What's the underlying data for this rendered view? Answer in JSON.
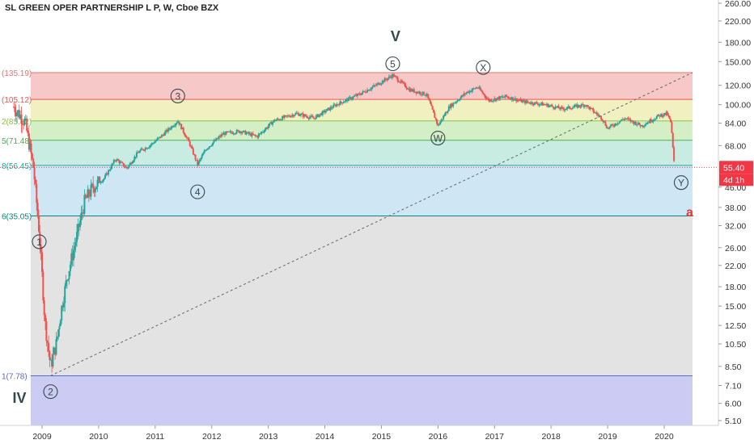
{
  "header": {
    "title": "SL GREEN OPER PARTNERSHIP L P, W, Cboe BZX"
  },
  "chart_data": {
    "type": "candlestick",
    "symbol_line": "SL GREEN OPER PARTNERSHIP L P, W, Cboe BZX",
    "scale": "log",
    "y_ticks": [
      "260.00",
      "220.00",
      "180.00",
      "150.00",
      "120.00",
      "100.00",
      "84.00",
      "68.00",
      "55.40",
      "46.00",
      "38.00",
      "32.00",
      "26.00",
      "22.00",
      "18.00",
      "15.00",
      "12.50",
      "10.50",
      "8.50",
      "7.10",
      "6.00",
      "5.10"
    ],
    "y_tick_values": [
      260,
      220,
      180,
      150,
      120,
      100,
      84,
      68,
      55.4,
      46,
      38,
      32,
      26,
      22,
      18,
      15,
      12.5,
      10.5,
      8.5,
      7.1,
      6.0,
      5.1
    ],
    "x_ticks": [
      "2009",
      "2010",
      "2011",
      "2012",
      "2013",
      "2014",
      "2015",
      "2016",
      "2017",
      "2018",
      "2019",
      "2020"
    ],
    "x_tick_values": [
      2009,
      2010,
      2011,
      2012,
      2013,
      2014,
      2015,
      2016,
      2017,
      2018,
      2019,
      2020
    ],
    "last_price": {
      "value": 55.4,
      "label": "55.40",
      "countdown": "4d 1h",
      "color": "#f23645"
    },
    "fib_levels": [
      {
        "label": "(135.19)",
        "value": 135.19,
        "color": "#e57373"
      },
      {
        "label": "(105.12)",
        "value": 105.12,
        "color": "#ef5350"
      },
      {
        "label": "2(85.82)",
        "value": 85.82,
        "color": "#8bc34a"
      },
      {
        "label": "5(71.48)",
        "value": 71.48,
        "color": "#4caf50"
      },
      {
        "label": "8(56.45)",
        "value": 56.45,
        "color": "#26a69a"
      },
      {
        "label": "6(35.05)",
        "value": 35.05,
        "color": "#00897b"
      },
      {
        "label": "1(7.78)",
        "value": 7.78,
        "color": "#5c6bc0"
      }
    ],
    "fib_zones": [
      {
        "top": 135.19,
        "bottom": 105.12,
        "color": "#f6c8c8"
      },
      {
        "top": 105.12,
        "bottom": 85.82,
        "color": "#f0f0c0"
      },
      {
        "top": 85.82,
        "bottom": 71.48,
        "color": "#d4efc6"
      },
      {
        "top": 71.48,
        "bottom": 56.45,
        "color": "#c8ece2"
      },
      {
        "top": 56.45,
        "bottom": 35.05,
        "color": "#cfe6f5"
      },
      {
        "top": 35.05,
        "bottom": 7.78,
        "color": "#e3e3e3"
      },
      {
        "top": 7.78,
        "bottom": 4.6,
        "color": "#cbcbf3"
      }
    ],
    "fib_x_range": [
      2008.8,
      2020.5
    ],
    "trendline": {
      "from": {
        "x": 2009.15,
        "y": 7.78
      },
      "to": {
        "x": 2020.5,
        "y": 135.19
      }
    },
    "wave_labels": [
      {
        "text": "1",
        "x": 2008.95,
        "y": 27.5,
        "circled": true
      },
      {
        "text": "2",
        "x": 2009.15,
        "y": 6.7,
        "circled": true
      },
      {
        "text": "3",
        "x": 2011.4,
        "y": 108.5,
        "circled": true
      },
      {
        "text": "4",
        "x": 2011.75,
        "y": 44.0,
        "circled": true
      },
      {
        "text": "5",
        "x": 2015.2,
        "y": 147.0,
        "circled": true
      },
      {
        "text": "W",
        "x": 2016.0,
        "y": 73.0,
        "circled": true
      },
      {
        "text": "X",
        "x": 2016.8,
        "y": 142.0,
        "circled": true
      },
      {
        "text": "Y",
        "x": 2020.3,
        "y": 48.0,
        "circled": true
      },
      {
        "text": "IV",
        "x": 2008.6,
        "y": 6.3,
        "circled": false
      },
      {
        "text": "V",
        "x": 2015.25,
        "y": 190.0,
        "circled": false
      },
      {
        "text": "a",
        "x": 2020.45,
        "y": 36.5,
        "circled": false,
        "color": "#e53935"
      }
    ],
    "price_path": [
      {
        "x": 2008.5,
        "close": 98
      },
      {
        "x": 2008.7,
        "close": 85
      },
      {
        "x": 2008.85,
        "close": 55
      },
      {
        "x": 2008.95,
        "close": 30
      },
      {
        "x": 2009.0,
        "close": 20
      },
      {
        "x": 2009.05,
        "close": 13
      },
      {
        "x": 2009.15,
        "close": 8.5
      },
      {
        "x": 2009.25,
        "close": 10.5
      },
      {
        "x": 2009.35,
        "close": 15
      },
      {
        "x": 2009.45,
        "close": 20
      },
      {
        "x": 2009.6,
        "close": 28
      },
      {
        "x": 2009.75,
        "close": 40
      },
      {
        "x": 2009.9,
        "close": 46
      },
      {
        "x": 2010.1,
        "close": 50
      },
      {
        "x": 2010.3,
        "close": 60
      },
      {
        "x": 2010.5,
        "close": 55
      },
      {
        "x": 2010.7,
        "close": 64
      },
      {
        "x": 2010.9,
        "close": 68
      },
      {
        "x": 2011.1,
        "close": 74
      },
      {
        "x": 2011.4,
        "close": 86
      },
      {
        "x": 2011.6,
        "close": 70
      },
      {
        "x": 2011.75,
        "close": 57
      },
      {
        "x": 2011.9,
        "close": 66
      },
      {
        "x": 2012.2,
        "close": 76
      },
      {
        "x": 2012.5,
        "close": 78
      },
      {
        "x": 2012.8,
        "close": 74
      },
      {
        "x": 2013.1,
        "close": 86
      },
      {
        "x": 2013.5,
        "close": 92
      },
      {
        "x": 2013.8,
        "close": 88
      },
      {
        "x": 2014.2,
        "close": 100
      },
      {
        "x": 2014.6,
        "close": 110
      },
      {
        "x": 2014.9,
        "close": 120
      },
      {
        "x": 2015.2,
        "close": 132
      },
      {
        "x": 2015.5,
        "close": 115
      },
      {
        "x": 2015.8,
        "close": 110
      },
      {
        "x": 2016.0,
        "close": 82
      },
      {
        "x": 2016.2,
        "close": 98
      },
      {
        "x": 2016.5,
        "close": 112
      },
      {
        "x": 2016.7,
        "close": 118
      },
      {
        "x": 2016.9,
        "close": 104
      },
      {
        "x": 2017.2,
        "close": 108
      },
      {
        "x": 2017.5,
        "close": 103
      },
      {
        "x": 2017.9,
        "close": 100
      },
      {
        "x": 2018.2,
        "close": 96
      },
      {
        "x": 2018.6,
        "close": 100
      },
      {
        "x": 2018.9,
        "close": 88
      },
      {
        "x": 2019.0,
        "close": 80
      },
      {
        "x": 2019.3,
        "close": 88
      },
      {
        "x": 2019.6,
        "close": 82
      },
      {
        "x": 2019.9,
        "close": 90
      },
      {
        "x": 2020.05,
        "close": 92
      },
      {
        "x": 2020.12,
        "close": 84
      },
      {
        "x": 2020.18,
        "close": 55.4
      }
    ],
    "colors": {
      "up": "#26a69a",
      "down": "#ef5350",
      "wick": "#555555"
    }
  }
}
